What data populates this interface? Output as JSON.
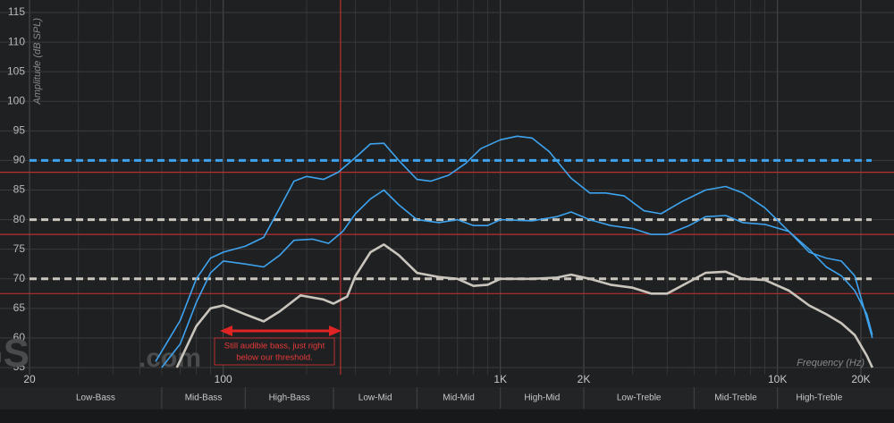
{
  "chart_data": {
    "type": "line",
    "x_label": "Frequency (Hz)",
    "y_label": "Amplitude (dB SPL)",
    "log_x": true,
    "grid": true,
    "xlim": [
      20,
      20000
    ],
    "ylim": [
      55,
      115
    ],
    "xticks": [
      20,
      100,
      {
        "value": 1000,
        "label": "1K"
      },
      {
        "value": 2000,
        "label": "2K"
      },
      {
        "value": 10000,
        "label": "10K"
      },
      {
        "value": 20000,
        "label": "20K"
      }
    ],
    "x_minor_ticks": [
      30,
      40,
      50,
      60,
      70,
      80,
      90,
      200,
      300,
      400,
      500,
      600,
      700,
      800,
      900,
      3000,
      4000,
      5000,
      6000,
      7000,
      8000,
      9000
    ],
    "yticks": [
      55,
      60,
      65,
      70,
      75,
      80,
      85,
      90,
      95,
      100,
      105,
      110,
      115
    ],
    "series": [
      {
        "color": "#3ea3ee",
        "x": [
          57,
          70,
          80,
          90,
          100,
          120,
          140,
          160,
          180,
          200,
          230,
          260,
          300,
          340,
          380,
          430,
          500,
          560,
          650,
          750,
          850,
          1000,
          1150,
          1300,
          1500,
          1800,
          2100,
          2400,
          2800,
          3300,
          3800,
          4500,
          5500,
          6500,
          7500,
          9000,
          11000,
          13000,
          15000,
          17000,
          19000,
          22000
        ],
        "values": [
          56,
          63,
          70,
          73.5,
          74.5,
          75.5,
          77,
          82,
          86.5,
          87.3,
          86.8,
          88,
          90.5,
          92.8,
          92.9,
          90,
          86.8,
          86.5,
          87.5,
          89.5,
          92,
          93.5,
          94.1,
          93.8,
          91.5,
          87,
          84.5,
          84.5,
          84,
          81.5,
          81,
          83,
          85,
          85.6,
          84.5,
          82,
          78,
          74.5,
          73.5,
          73,
          70.5,
          60
        ]
      },
      {
        "color": "#3ea3ee",
        "x": [
          60,
          70,
          80,
          90,
          100,
          120,
          140,
          160,
          180,
          210,
          240,
          270,
          300,
          340,
          380,
          430,
          500,
          600,
          700,
          800,
          900,
          1000,
          1300,
          1600,
          1800,
          2100,
          2500,
          3000,
          3500,
          4000,
          4800,
          5500,
          6500,
          7500,
          9000,
          11000,
          13000,
          15000,
          17000,
          19000,
          21000,
          22000
        ],
        "values": [
          55,
          59,
          66,
          71,
          73,
          72.5,
          72,
          74,
          76.5,
          76.7,
          76,
          78,
          81,
          83.5,
          85,
          82.5,
          80,
          79.5,
          80,
          79,
          79,
          80,
          79.8,
          80.5,
          81.3,
          80,
          79,
          78.5,
          77.5,
          77.5,
          79,
          80.5,
          80.7,
          79.5,
          79.2,
          78,
          75,
          72,
          70.5,
          68,
          64,
          60.5
        ]
      },
      {
        "color": "#c9c5bd",
        "x": [
          68,
          80,
          90,
          100,
          120,
          140,
          160,
          190,
          230,
          250,
          280,
          300,
          340,
          380,
          430,
          500,
          600,
          700,
          800,
          900,
          1000,
          1300,
          1600,
          1800,
          2100,
          2500,
          3000,
          3500,
          4000,
          4800,
          5500,
          6500,
          7500,
          9000,
          11000,
          13000,
          15000,
          17000,
          19000,
          21000,
          22000
        ],
        "values": [
          55,
          62,
          65,
          65.5,
          64,
          62.8,
          64.5,
          67.2,
          66.5,
          65.8,
          67,
          70.5,
          74.5,
          75.8,
          74,
          71,
          70.3,
          70,
          68.8,
          69,
          70,
          70,
          70.2,
          70.7,
          70,
          69,
          68.5,
          67.5,
          67.5,
          69.5,
          71,
          71.2,
          70,
          69.8,
          68,
          65.5,
          64,
          62.5,
          60.5,
          57,
          55
        ]
      }
    ],
    "reference_lines": [
      {
        "value": 90,
        "color": "#3ea3ee"
      },
      {
        "value": 80,
        "color": "#c9c5bd"
      },
      {
        "value": 70,
        "color": "#c9c5bd"
      }
    ],
    "threshold_color": "#b8312f",
    "threshold_levels": [
      88,
      77.5,
      67.5
    ],
    "threshold_frequency": 265,
    "bands": {
      "names": [
        "Low-Bass",
        "Mid-Bass",
        "High-Bass",
        "Low-Mid",
        "Mid-Mid",
        "High-Mid",
        "Low-Treble",
        "Mid-Treble",
        "High-Treble"
      ],
      "edges": [
        20,
        60,
        120,
        250,
        500,
        1000,
        2000,
        5000,
        10000,
        20000
      ]
    },
    "annotation": [
      "Still audible bass, just right",
      "below our threshold."
    ],
    "watermark": [
      "RTINGS",
      ".com"
    ]
  }
}
